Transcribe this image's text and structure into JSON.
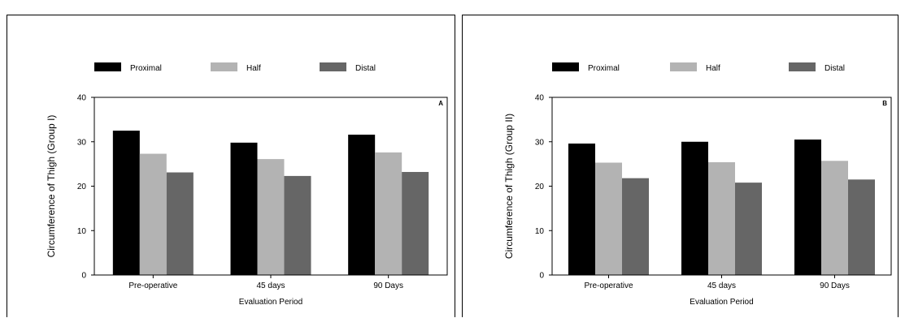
{
  "chart_data": [
    {
      "type": "bar",
      "panel_label": "A",
      "categories": [
        "Pre-operative",
        "45 days",
        "90 Days"
      ],
      "series": [
        {
          "name": "Proximal",
          "color": "#000000",
          "values": [
            32.5,
            29.8,
            31.6
          ]
        },
        {
          "name": "Half",
          "color": "#b3b3b3",
          "values": [
            27.3,
            26.1,
            27.6
          ]
        },
        {
          "name": "Distal",
          "color": "#666666",
          "values": [
            23.1,
            22.3,
            23.2
          ]
        }
      ],
      "xlabel": "Evaluation Period",
      "ylabel": "Circumference of Thigh (Group I)",
      "ylim": [
        0,
        40
      ],
      "yticks": [
        0,
        10,
        20,
        30,
        40
      ],
      "legend_position": "top",
      "grid": false
    },
    {
      "type": "bar",
      "panel_label": "B",
      "categories": [
        "Pre-operative",
        "45 days",
        "90 Days"
      ],
      "series": [
        {
          "name": "Proximal",
          "color": "#000000",
          "values": [
            29.6,
            30.0,
            30.5
          ]
        },
        {
          "name": "Half",
          "color": "#b3b3b3",
          "values": [
            25.3,
            25.4,
            25.7
          ]
        },
        {
          "name": "Distal",
          "color": "#666666",
          "values": [
            21.8,
            20.8,
            21.5
          ]
        }
      ],
      "xlabel": "Evaluation Period",
      "ylabel": "Circumference of Thigh (Group II)",
      "ylim": [
        0,
        40
      ],
      "yticks": [
        0,
        10,
        20,
        30,
        40
      ],
      "legend_position": "top",
      "grid": false
    }
  ]
}
